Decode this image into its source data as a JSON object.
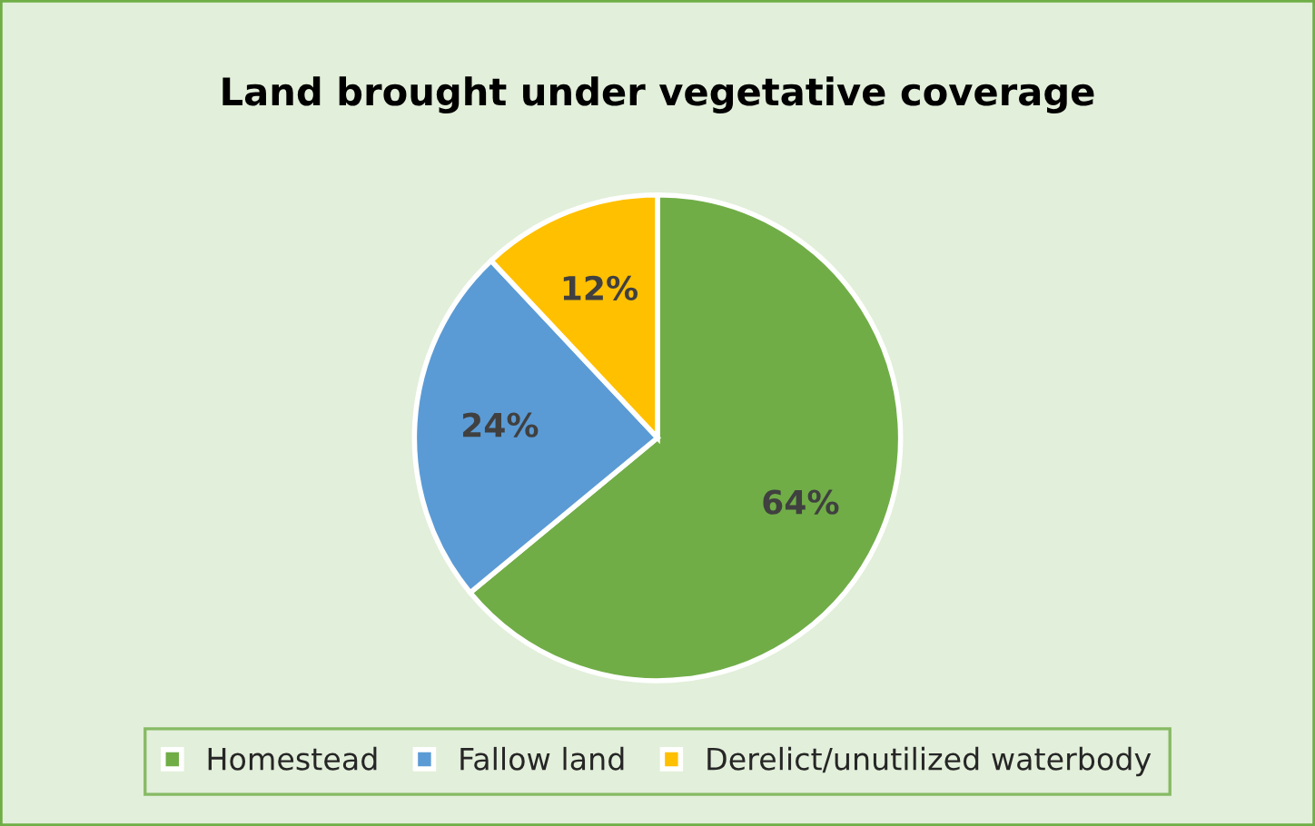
{
  "chart_data": {
    "type": "pie",
    "title": "Land brought under vegetative coverage",
    "categories": [
      "Homestead",
      "Fallow land",
      "Derelict/unutilized waterbody"
    ],
    "values": [
      64,
      24,
      12
    ],
    "colors": [
      "#70ad47",
      "#5b9bd5",
      "#ffc000"
    ],
    "value_labels": [
      "64%",
      "24%",
      "12%"
    ],
    "legend": "bottom"
  }
}
